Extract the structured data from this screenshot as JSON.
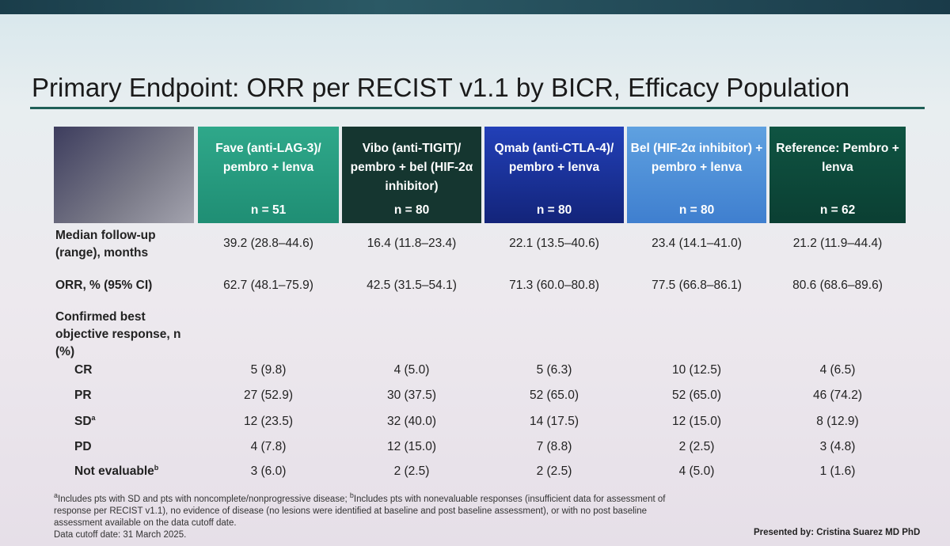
{
  "title": "Primary Endpoint: ORR per RECIST v1.1 by BICR, Efficacy Population",
  "columns": [
    {
      "label": "Fave (anti-LAG-3)/ pembro + lenva",
      "n": "n = 51"
    },
    {
      "label": "Vibo (anti-TIGIT)/ pembro + bel (HIF-2α inhibitor)",
      "n": "n = 80"
    },
    {
      "label": "Qmab (anti-CTLA-4)/ pembro + lenva",
      "n": "n = 80"
    },
    {
      "label": "Bel (HIF-2α inhibitor) + pembro + lenva",
      "n": "n = 80"
    },
    {
      "label": "Reference: Pembro + lenva",
      "n": "n = 62"
    }
  ],
  "rows": {
    "median_follow_up": {
      "label": "Median follow-up (range), months",
      "values": [
        "39.2 (28.8–44.6)",
        "16.4 (11.8–23.4)",
        "22.1 (13.5–40.6)",
        "23.4 (14.1–41.0)",
        "21.2 (11.9–44.4)"
      ]
    },
    "orr": {
      "label": "ORR, % (95% CI)",
      "values": [
        "62.7 (48.1–75.9)",
        "42.5 (31.5–54.1)",
        "71.3 (60.0–80.8)",
        "77.5 (66.8–86.1)",
        "80.6 (68.6–89.6)"
      ]
    },
    "best_response": {
      "label": "Confirmed best objective response, n (%)"
    },
    "cr": {
      "label": "CR",
      "values": [
        "5 (9.8)",
        "4 (5.0)",
        "5 (6.3)",
        "10 (12.5)",
        "4 (6.5)"
      ]
    },
    "pr": {
      "label": "PR",
      "values": [
        "27 (52.9)",
        "30 (37.5)",
        "52 (65.0)",
        "52 (65.0)",
        "46 (74.2)"
      ]
    },
    "sd": {
      "label": "SD",
      "sup": "a",
      "values": [
        "12 (23.5)",
        "32 (40.0)",
        "14 (17.5)",
        "12 (15.0)",
        "8 (12.9)"
      ]
    },
    "pd": {
      "label": "PD",
      "values": [
        "4 (7.8)",
        "12 (15.0)",
        "7 (8.8)",
        "2 (2.5)",
        "3 (4.8)"
      ]
    },
    "ne": {
      "label": "Not evaluable",
      "sup": "b",
      "values": [
        "3 (6.0)",
        "2 (2.5)",
        "2 (2.5)",
        "4 (5.0)",
        "1 (1.6)"
      ]
    }
  },
  "footnote_a_mark": "a",
  "footnote_a": "Includes pts with SD and pts with noncomplete/nonprogressive disease; ",
  "footnote_b_mark": "b",
  "footnote_b": "Includes pts with nonevaluable responses (insufficient data for assessment of response per RECIST v1.1), no evidence of disease (no lesions were identified at baseline and post baseline assessment), or with no post baseline assessment available on the data cutoff date.",
  "data_cutoff": "Data cutoff date: 31 March 2025.",
  "presenter": "Presented by: Cristina Suarez MD PhD"
}
